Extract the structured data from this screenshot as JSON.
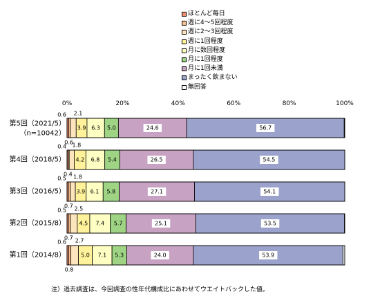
{
  "chart_data": {
    "type": "bar",
    "orientation": "horizontal",
    "stacked": "percent",
    "xlim": [
      0,
      100
    ],
    "x_ticks": [
      "0%",
      "20%",
      "40%",
      "60%",
      "80%",
      "100%"
    ],
    "grid": false,
    "legend_position": "top-right",
    "categories": [
      {
        "main": "第5回（2021/5）",
        "sub": "（n=10042）"
      },
      {
        "main": "第4回（2018/5）",
        "sub": ""
      },
      {
        "main": "第3回（2016/5）",
        "sub": ""
      },
      {
        "main": "第2回（2015/8）",
        "sub": ""
      },
      {
        "main": "第1回（2014/8）",
        "sub": ""
      }
    ],
    "series": [
      {
        "name": "ほとんど毎日",
        "color": "#f09070",
        "values": [
          0.6,
          0.4,
          0.5,
          0.5,
          0.6
        ]
      },
      {
        "name": "週に4～5回程度",
        "color": "#f8c090",
        "values": [
          0.6,
          0.4,
          0.7,
          0.7,
          0.8
        ]
      },
      {
        "name": "週に2～3回程度",
        "color": "#fce4bc",
        "values": [
          2.1,
          1.8,
          1.8,
          2.5,
          2.7
        ]
      },
      {
        "name": "週に1回程度",
        "color": "#fff29a",
        "values": [
          3.9,
          4.2,
          3.9,
          4.5,
          5.0
        ]
      },
      {
        "name": "月に数回程度",
        "color": "#ffffc4",
        "values": [
          6.3,
          6.8,
          6.1,
          7.4,
          7.1
        ]
      },
      {
        "name": "月に1回程度",
        "color": "#9ed483",
        "values": [
          5.0,
          5.4,
          5.8,
          5.7,
          5.3
        ]
      },
      {
        "name": "月に1回未満",
        "color": "#c7a2c3",
        "values": [
          24.6,
          26.5,
          27.1,
          25.1,
          24.0
        ]
      },
      {
        "name": "まったく飲まない",
        "color": "#9ba3cc",
        "values": [
          56.7,
          54.5,
          54.1,
          53.5,
          53.9
        ]
      },
      {
        "name": "無回答",
        "color": "#ffffff",
        "values": [
          0.2,
          0.0,
          0.0,
          0.1,
          0.6
        ]
      }
    ],
    "labels": [
      {
        "series": 0,
        "values": [
          "0.6",
          "0.4",
          "0.5",
          "0.5",
          "0.6"
        ],
        "placement": "above-left"
      },
      {
        "series": 1,
        "values": [
          "0.6",
          "0.4",
          "0.7",
          "0.7",
          "0.8"
        ],
        "placement": "below"
      },
      {
        "series": 2,
        "values": [
          "2.1",
          "1.8",
          "1.8",
          "2.5",
          "2.7"
        ],
        "placement": "above"
      },
      {
        "series": 3,
        "values": [
          "3.9",
          "4.2",
          "3.9",
          "4.5",
          "5.0"
        ],
        "placement": "inside"
      },
      {
        "series": 4,
        "values": [
          "6.3",
          "6.8",
          "6.1",
          "7.4",
          "7.1"
        ],
        "placement": "inside"
      },
      {
        "series": 5,
        "values": [
          "5.0",
          "5.4",
          "5.8",
          "5.7",
          "5.3"
        ],
        "placement": "inside"
      },
      {
        "series": 6,
        "values": [
          "24.6",
          "26.5",
          "27.1",
          "25.1",
          "24.0"
        ],
        "placement": "inside-boxed"
      },
      {
        "series": 7,
        "values": [
          "56.7",
          "54.5",
          "54.1",
          "53.5",
          "53.9"
        ],
        "placement": "inside-boxed"
      }
    ]
  },
  "note": "注）過去調査は、今回調査の性年代構成比にあわせてウエイトバックした値。"
}
